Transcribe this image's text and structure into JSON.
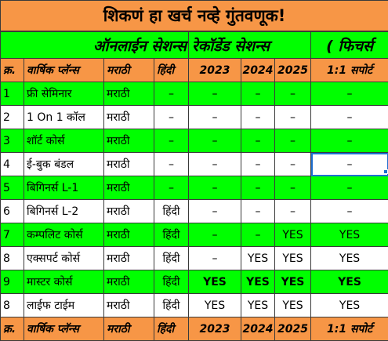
{
  "title": "शिकणं हा खर्च नव्हे गुंतवणूक!",
  "headings": {
    "online": "ऑनलाईन सेशन्स",
    "recorded": "रेकॉर्डेड सेशन्स",
    "features": "( फिचर्स"
  },
  "columns": {
    "no": "क्र.",
    "plans": "वार्षिक प्लॅन्स",
    "marathi": "मराठी",
    "hindi": "हिंदी",
    "y2023": "2023",
    "y2024": "2024",
    "y2025": "2025",
    "support": "1:1 सपोर्ट"
  },
  "rows": [
    {
      "no": "1",
      "plan": "फ्री सेमिनार",
      "marathi": "मराठी",
      "hindi": "–",
      "y2023": "–",
      "y2024": "–",
      "y2025": "–",
      "support": "–"
    },
    {
      "no": "2",
      "plan": "1 On 1 कॉल",
      "marathi": "मराठी",
      "hindi": "–",
      "y2023": "–",
      "y2024": "–",
      "y2025": "–",
      "support": "–"
    },
    {
      "no": "3",
      "plan": "शॉर्ट कोर्स",
      "marathi": "मराठी",
      "hindi": "–",
      "y2023": "–",
      "y2024": "–",
      "y2025": "–",
      "support": "–"
    },
    {
      "no": "4",
      "plan": "ई-बुक बंडल",
      "marathi": "मराठी",
      "hindi": "–",
      "y2023": "–",
      "y2024": "–",
      "y2025": "–",
      "support": "–"
    },
    {
      "no": "5",
      "plan": "बिगिनर्स L-1",
      "marathi": "मराठी",
      "hindi": "–",
      "y2023": "–",
      "y2024": "–",
      "y2025": "–",
      "support": "–"
    },
    {
      "no": "6",
      "plan": "बिगिनर्स L-2",
      "marathi": "मराठी",
      "hindi": "हिंदी",
      "y2023": "–",
      "y2024": "–",
      "y2025": "–",
      "support": "–"
    },
    {
      "no": "7",
      "plan": "कम्पलिट कोर्स",
      "marathi": "मराठी",
      "hindi": "हिंदी",
      "y2023": "–",
      "y2024": "–",
      "y2025": "YES",
      "support": "YES"
    },
    {
      "no": "8",
      "plan": "एक्सपर्ट कोर्स",
      "marathi": "मराठी",
      "hindi": "हिंदी",
      "y2023": "–",
      "y2024": "YES",
      "y2025": "YES",
      "support": "YES"
    },
    {
      "no": "9",
      "plan": "मास्टर कोर्स",
      "marathi": "मराठी",
      "hindi": "हिंदी",
      "y2023": "YES",
      "y2024": "YES",
      "y2025": "YES",
      "support": "YES"
    },
    {
      "no": "8",
      "plan": "लाईफ टाईम",
      "marathi": "मराठी",
      "hindi": "हिंदी",
      "y2023": "YES",
      "y2024": "YES",
      "y2025": "YES",
      "support": "YES"
    }
  ],
  "colors": {
    "orange": "#f79646",
    "green": "#00ff00",
    "selection": "#1f6fd0"
  }
}
